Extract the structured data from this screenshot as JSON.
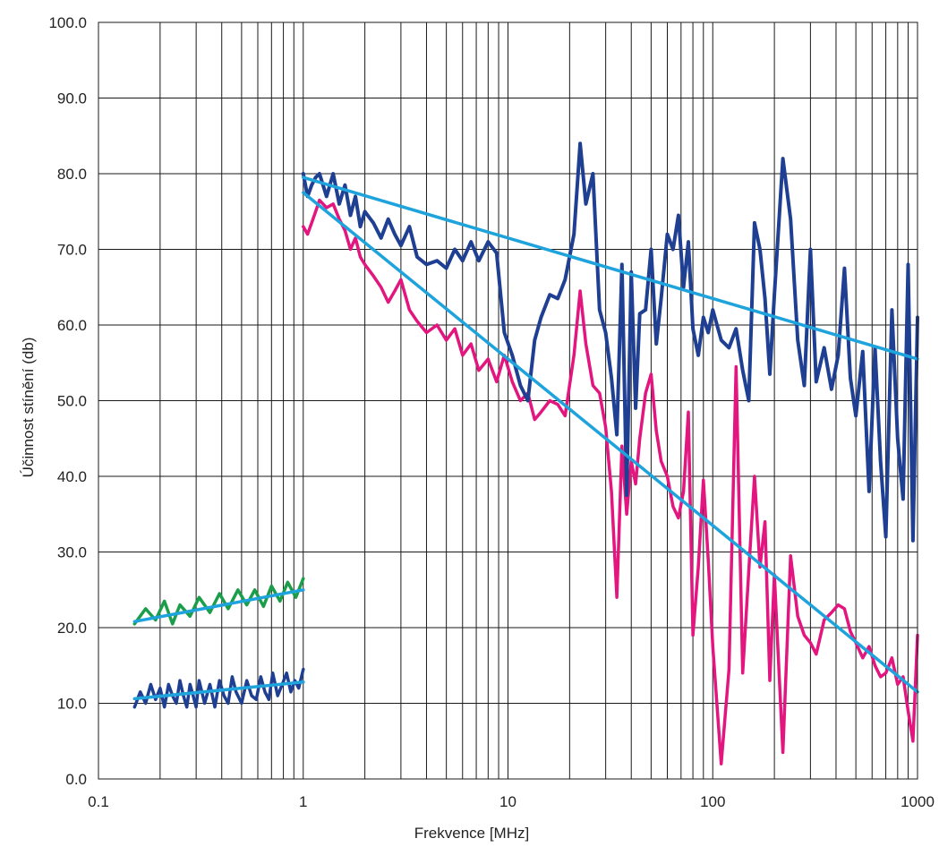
{
  "chart_data": {
    "type": "line",
    "xlabel": "Frekvence [MHz]",
    "ylabel": "Účinnost stínění (db)",
    "x_scale": "log",
    "xlim": [
      0.1,
      1000
    ],
    "ylim": [
      0,
      100
    ],
    "x_ticks": [
      0.1,
      1,
      10,
      100,
      1000
    ],
    "x_tick_labels": [
      "0.1",
      "1",
      "10",
      "100",
      "1000"
    ],
    "y_ticks": [
      0,
      10,
      20,
      30,
      40,
      50,
      60,
      70,
      80,
      90,
      100
    ],
    "y_tick_labels": [
      "0.0",
      "10.0",
      "20.0",
      "30.0",
      "40.0",
      "50.0",
      "60.0",
      "70.0",
      "80.0",
      "90.0",
      "100.0"
    ],
    "grid": true,
    "colors": {
      "navy": "#1f3f93",
      "magenta": "#e3157f",
      "green": "#1a9e49",
      "trend": "#1ea3dc",
      "grid": "#1a1a1a"
    },
    "series": [
      {
        "color_key": "green",
        "width": 3.5,
        "x": [
          0.15,
          0.17,
          0.19,
          0.21,
          0.23,
          0.25,
          0.28,
          0.31,
          0.35,
          0.39,
          0.43,
          0.48,
          0.53,
          0.58,
          0.64,
          0.7,
          0.77,
          0.84,
          0.92,
          1.0
        ],
        "y": [
          20.5,
          22.5,
          21,
          23.5,
          20.5,
          23,
          21.5,
          24,
          22,
          24.5,
          22.5,
          25,
          23,
          25,
          22.8,
          25.5,
          23.5,
          26,
          24,
          26.5
        ]
      },
      {
        "color_key": "trend",
        "width": 3.5,
        "x": [
          0.15,
          1.0
        ],
        "y": [
          20.8,
          25.0
        ]
      },
      {
        "color_key": "navy",
        "width": 3.5,
        "x": [
          0.15,
          0.16,
          0.17,
          0.18,
          0.19,
          0.2,
          0.21,
          0.22,
          0.23,
          0.24,
          0.25,
          0.26,
          0.27,
          0.28,
          0.29,
          0.3,
          0.31,
          0.33,
          0.35,
          0.37,
          0.39,
          0.41,
          0.43,
          0.45,
          0.47,
          0.5,
          0.53,
          0.56,
          0.59,
          0.62,
          0.65,
          0.68,
          0.71,
          0.75,
          0.79,
          0.83,
          0.87,
          0.91,
          0.95,
          1.0
        ],
        "y": [
          9.5,
          11.5,
          10,
          12.5,
          10.5,
          12,
          9.5,
          12.5,
          11,
          10,
          13,
          11,
          9.5,
          12.5,
          11,
          9.5,
          13,
          10,
          12.5,
          9.5,
          13,
          11,
          10,
          13.5,
          11.5,
          10,
          13,
          11,
          10.5,
          13.5,
          11.5,
          10.5,
          14,
          11,
          12.5,
          14,
          11.5,
          13,
          12,
          14.5
        ]
      },
      {
        "color_key": "trend",
        "width": 3.5,
        "x": [
          0.15,
          1.0
        ],
        "y": [
          10.6,
          12.8
        ]
      },
      {
        "color_key": "magenta",
        "width": 3.5,
        "x": [
          1.0,
          1.05,
          1.1,
          1.15,
          1.2,
          1.3,
          1.4,
          1.5,
          1.6,
          1.7,
          1.8,
          1.9,
          2.0,
          2.2,
          2.4,
          2.6,
          2.8,
          3.0,
          3.3,
          3.6,
          4.0,
          4.5,
          5.0,
          5.5,
          6.0,
          6.6,
          7.2,
          8.0,
          8.8,
          9.6,
          10.5,
          11.5,
          12.5,
          13.5,
          14.5,
          16.0,
          17.5,
          19.0,
          21.0,
          22.5,
          24.0,
          26.0,
          28.0,
          30.0,
          32.0,
          34.0,
          36.0,
          38.0,
          40.0,
          42.0,
          44.0,
          47.0,
          50.0,
          53.0,
          56.0,
          60.0,
          64.0,
          68.0,
          72.0,
          76.0,
          80.0,
          85.0,
          90.0,
          95.0,
          100.0,
          110.0,
          120.0,
          130.0,
          140.0,
          150.0,
          160.0,
          170.0,
          180.0,
          190.0,
          200.0,
          220.0,
          240.0,
          260.0,
          280.0,
          300.0,
          320.0,
          350.0,
          380.0,
          410.0,
          440.0,
          470.0,
          500.0,
          540.0,
          580.0,
          620.0,
          660.0,
          700.0,
          750.0,
          800.0,
          850.0,
          900.0,
          950.0,
          1000.0
        ],
        "y": [
          73,
          72,
          73.5,
          75,
          76.5,
          75.5,
          76,
          74,
          72.5,
          70,
          71.5,
          69,
          68,
          66.5,
          65,
          63,
          64.5,
          66,
          62,
          60.5,
          59,
          60,
          58,
          59.5,
          56,
          57.5,
          54,
          55.5,
          52.5,
          56,
          52.5,
          50,
          51,
          47.5,
          48.5,
          50,
          49.5,
          48,
          56,
          64.5,
          57.5,
          52,
          51,
          46.5,
          38,
          24,
          44,
          35,
          42,
          39,
          45,
          51,
          53.5,
          46,
          42,
          40,
          36,
          34.5,
          38,
          48.5,
          19,
          28,
          39.5,
          29,
          17.5,
          2,
          14.5,
          54.5,
          14,
          27.5,
          40,
          28,
          34,
          13,
          27,
          3.5,
          29.5,
          21.5,
          19,
          18,
          16.5,
          21,
          22,
          23,
          22.5,
          19.5,
          18,
          16,
          17.5,
          15,
          13.5,
          14,
          16,
          12.5,
          13.5,
          9,
          5,
          19
        ]
      },
      {
        "color_key": "navy",
        "width": 4,
        "x": [
          1.0,
          1.05,
          1.1,
          1.15,
          1.2,
          1.3,
          1.4,
          1.5,
          1.6,
          1.7,
          1.8,
          1.9,
          2.0,
          2.2,
          2.4,
          2.6,
          2.8,
          3.0,
          3.3,
          3.6,
          4.0,
          4.5,
          5.0,
          5.5,
          6.0,
          6.6,
          7.2,
          8.0,
          8.8,
          9.6,
          10.5,
          11.5,
          12.5,
          13.5,
          14.5,
          16.0,
          17.5,
          19.0,
          21.0,
          22.5,
          24.0,
          26.0,
          28.0,
          30.0,
          32.0,
          34.0,
          36.0,
          38.0,
          40.0,
          42.0,
          44.0,
          47.0,
          50.0,
          53.0,
          56.0,
          60.0,
          64.0,
          68.0,
          72.0,
          76.0,
          80.0,
          85.0,
          90.0,
          95.0,
          100.0,
          110.0,
          120.0,
          130.0,
          140.0,
          150.0,
          160.0,
          170.0,
          180.0,
          190.0,
          200.0,
          220.0,
          240.0,
          260.0,
          280.0,
          300.0,
          320.0,
          350.0,
          380.0,
          410.0,
          440.0,
          470.0,
          500.0,
          540.0,
          580.0,
          620.0,
          660.0,
          700.0,
          750.0,
          800.0,
          850.0,
          900.0,
          950.0,
          1000.0
        ],
        "y": [
          80,
          77,
          78.5,
          79.5,
          80,
          77,
          80,
          76,
          78.5,
          74.5,
          77,
          73,
          75,
          73.5,
          71.5,
          74,
          72,
          70.5,
          73,
          69,
          68,
          68.5,
          67.5,
          70,
          68.5,
          71,
          68.5,
          71,
          69.5,
          59,
          56,
          52,
          50,
          58,
          61,
          64,
          63.5,
          66,
          72,
          84,
          76,
          80,
          62,
          59,
          53,
          45.5,
          68,
          37.5,
          67,
          49,
          61.5,
          62,
          70,
          57.5,
          63.5,
          72,
          70,
          74.5,
          65,
          71,
          59.5,
          56,
          61,
          59,
          62,
          58,
          57,
          59.5,
          54,
          50,
          73.5,
          70,
          63.5,
          53.5,
          64,
          82,
          74,
          58,
          52,
          70,
          52.5,
          57,
          51.5,
          56,
          67.5,
          53,
          48,
          56.5,
          38,
          57,
          42,
          32,
          62,
          45,
          37,
          68,
          31.5,
          61
        ]
      },
      {
        "color_key": "trend",
        "width": 3.5,
        "x": [
          1.0,
          1000.0
        ],
        "y": [
          79.5,
          55.5
        ]
      },
      {
        "color_key": "trend",
        "width": 3.5,
        "x": [
          1.0,
          1000.0
        ],
        "y": [
          77.5,
          11.5
        ]
      }
    ]
  }
}
